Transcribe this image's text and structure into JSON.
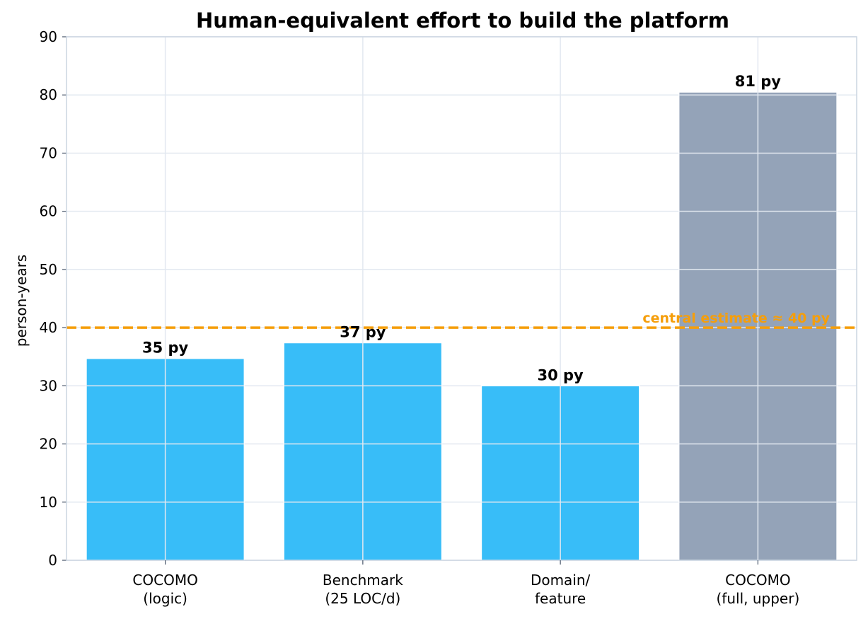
{
  "chart_data": {
    "type": "bar",
    "title": "Human-equivalent effort to build the platform",
    "xlabel": "",
    "ylabel": "person-years",
    "ylim": [
      0,
      90
    ],
    "yticks": [
      0,
      10,
      20,
      30,
      40,
      50,
      60,
      70,
      80,
      90
    ],
    "categories": [
      [
        "COCOMO",
        "(logic)"
      ],
      [
        "Benchmark",
        "(25 LOC/d)"
      ],
      [
        "Domain/",
        "feature"
      ],
      [
        "COCOMO",
        "(full, upper)"
      ]
    ],
    "values": [
      34.7,
      37.4,
      30.0,
      80.5
    ],
    "data_labels": [
      "35 py",
      "37 py",
      "30 py",
      "81 py"
    ],
    "bar_colors": [
      "#38bdf8",
      "#38bdf8",
      "#38bdf8",
      "#94a3b8"
    ],
    "reference_line": {
      "value": 40,
      "label": "central estimate ≈ 40 py",
      "color": "#f59e0b",
      "style": "dashed"
    },
    "grid": true,
    "grid_color": "#e2e8f0",
    "axis_color": "#cbd5e1"
  }
}
